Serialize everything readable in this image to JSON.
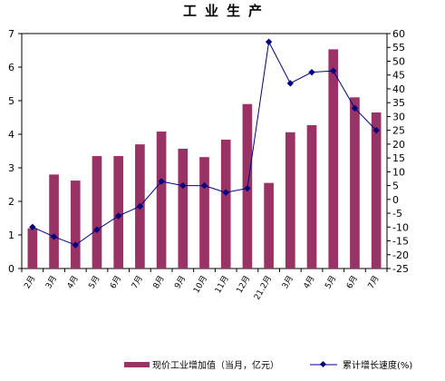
{
  "chart_data": {
    "type": "bar",
    "title": "工业生产",
    "categories": [
      "2月",
      "3月",
      "4月",
      "5月",
      "6月",
      "7月",
      "8月",
      "9月",
      "10月",
      "11月",
      "12月",
      "21.2月",
      "3月",
      "4月",
      "5月",
      "6月",
      "7月"
    ],
    "series": [
      {
        "name": "现价工业增加值（当月，亿元）",
        "type": "bar",
        "axis": "left",
        "color": "#993366",
        "values": [
          1.2,
          2.8,
          2.62,
          3.35,
          3.35,
          3.7,
          4.08,
          3.57,
          3.32,
          3.84,
          4.9,
          2.55,
          4.06,
          4.27,
          6.53,
          5.1,
          4.65
        ]
      },
      {
        "name": "累计增长速度(%)",
        "type": "line",
        "axis": "right",
        "color": "#000080",
        "values": [
          -10,
          -13.5,
          -16.5,
          -11,
          -6,
          -2.5,
          6.5,
          5,
          5,
          2.5,
          4,
          57,
          42,
          46,
          46.5,
          33,
          25
        ]
      }
    ],
    "y_left": {
      "min": 0,
      "max": 7,
      "ticks": [
        0,
        1,
        2,
        3,
        4,
        5,
        6,
        7
      ]
    },
    "y_right": {
      "min": -25,
      "max": 60,
      "ticks": [
        -25,
        -20,
        -15,
        -10,
        -5,
        0,
        5,
        10,
        15,
        20,
        25,
        30,
        35,
        40,
        45,
        50,
        55,
        60
      ]
    },
    "grid": false,
    "legend_position": "bottom"
  }
}
